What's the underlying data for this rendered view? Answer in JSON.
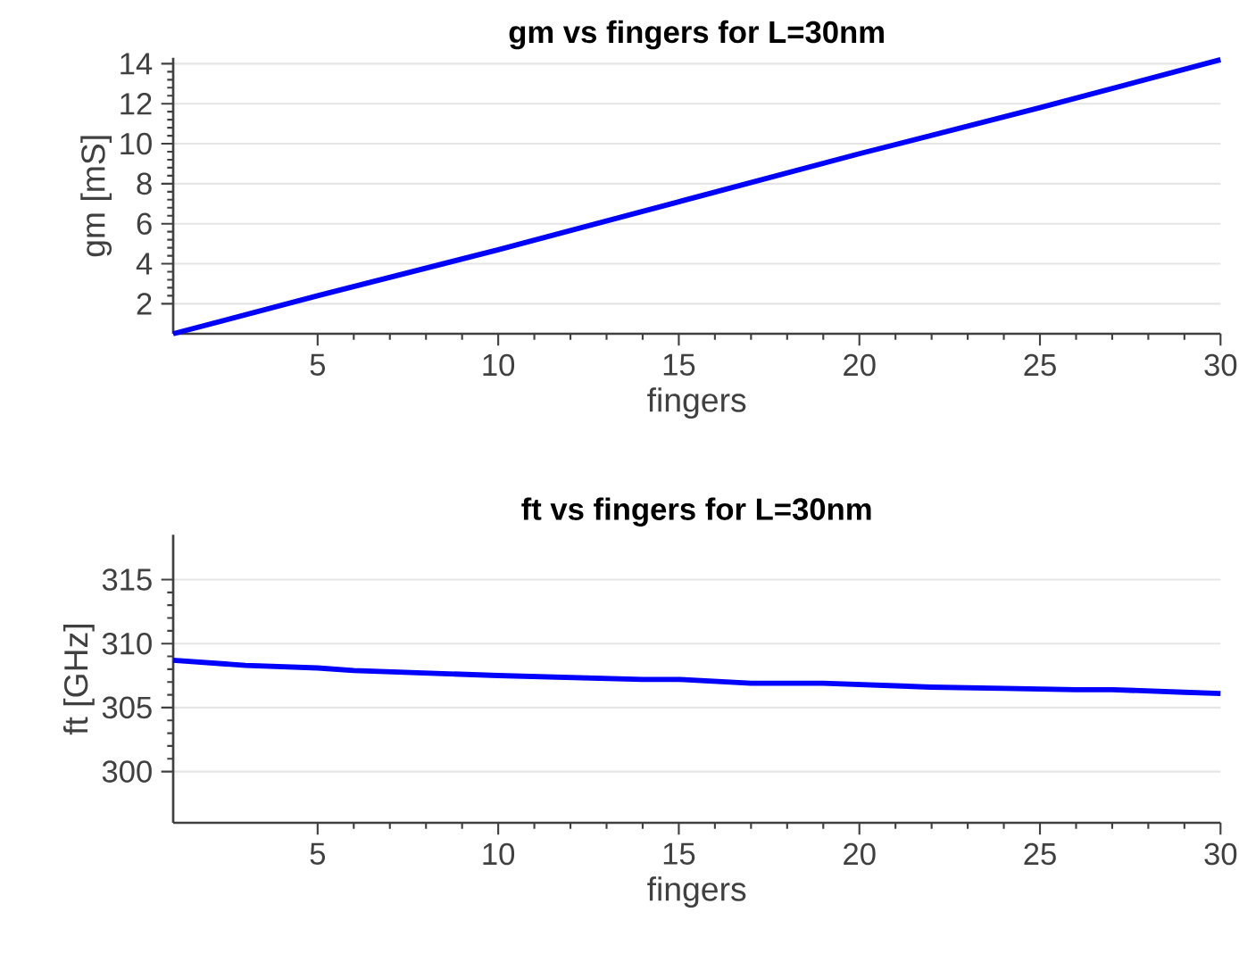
{
  "chart_data": [
    {
      "type": "line",
      "title": "gm vs fingers for L=30nm",
      "xlabel": "fingers",
      "ylabel": "gm [mS]",
      "color": "#0000ff",
      "x": [
        1,
        5,
        10,
        15,
        20,
        25,
        30
      ],
      "values": [
        0.5,
        2.4,
        4.7,
        7.1,
        9.5,
        11.8,
        14.2
      ],
      "xlim": [
        1,
        30
      ],
      "ylim": [
        0.5,
        14.3
      ],
      "xticks": [
        5,
        10,
        15,
        20,
        25,
        30
      ],
      "yticks": [
        2,
        4,
        6,
        8,
        10,
        12,
        14
      ],
      "grid": "y"
    },
    {
      "type": "line",
      "title": "ft vs fingers for L=30nm",
      "xlabel": "fingers",
      "ylabel": "ft [GHz]",
      "color": "#0000ff",
      "x": [
        1,
        3,
        5,
        6,
        10,
        14,
        15,
        17,
        19,
        21,
        22,
        24,
        26,
        27,
        29,
        30
      ],
      "values": [
        308.7,
        308.3,
        308.1,
        307.9,
        307.5,
        307.2,
        307.2,
        306.9,
        306.9,
        306.7,
        306.6,
        306.5,
        306.4,
        306.4,
        306.2,
        306.1
      ],
      "xlim": [
        1,
        30
      ],
      "ylim": [
        296,
        318.5
      ],
      "xticks": [
        5,
        10,
        15,
        20,
        25,
        30
      ],
      "yticks": [
        300,
        305,
        310,
        315
      ],
      "grid": "y"
    }
  ]
}
